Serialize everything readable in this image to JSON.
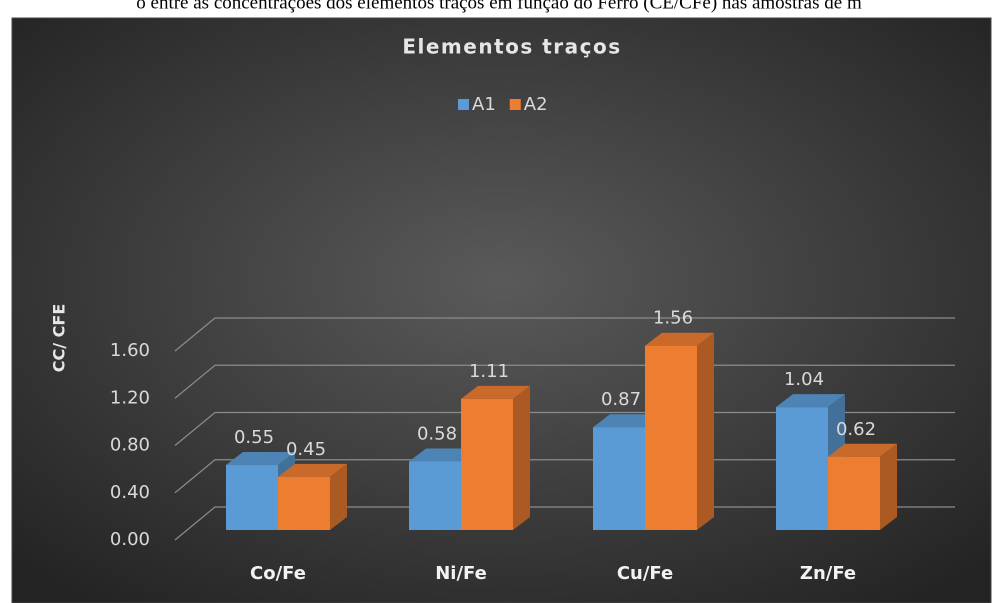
{
  "caption": "o entre as concentrações dos elementos traços em função do Ferro (CE/CFe) nas amostras de m",
  "chart_data": {
    "type": "bar3d",
    "title": "Elementos traços",
    "y_label": "CC/ CFE",
    "categories": [
      "Co/Fe",
      "Ni/Fe",
      "Cu/Fe",
      "Zn/Fe"
    ],
    "series": [
      {
        "name": "A1",
        "color": "#5b9bd5",
        "values": [
          0.55,
          0.58,
          0.87,
          1.04
        ]
      },
      {
        "name": "A2",
        "color": "#ed7d31",
        "values": [
          0.45,
          1.11,
          1.56,
          0.62
        ]
      }
    ],
    "ylim": [
      0,
      1.6
    ],
    "yticks": [
      {
        "value": 0,
        "label": "0.00"
      },
      {
        "value": 0.4,
        "label": "0.40"
      },
      {
        "value": 0.8,
        "label": "0.80"
      },
      {
        "value": 1.2,
        "label": "1.20"
      },
      {
        "value": 1.6,
        "label": "1.60"
      }
    ],
    "grid": true,
    "legend": "top"
  }
}
